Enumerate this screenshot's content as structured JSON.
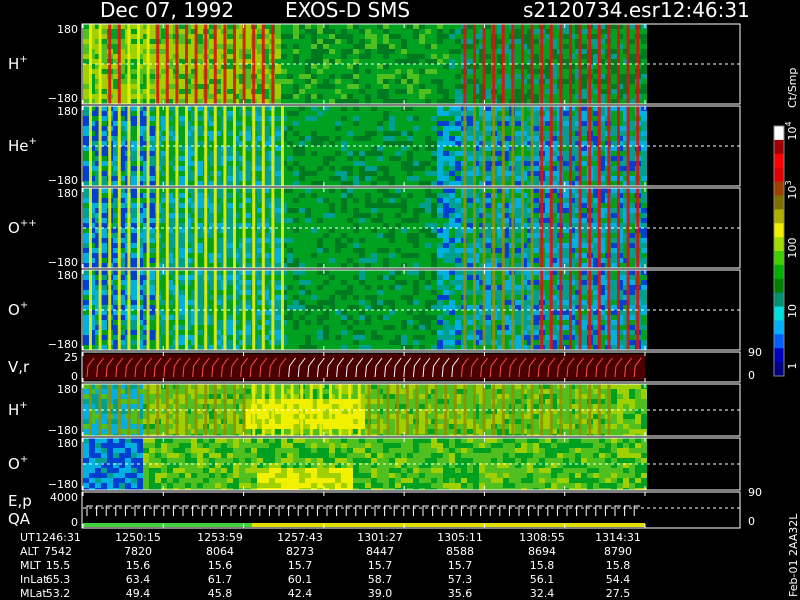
{
  "header": {
    "date": "Dec 07, 1992",
    "instrument": "EXOS-D SMS",
    "file": "s2120734.esr",
    "time": "12:46:31"
  },
  "colorbar": {
    "title": "Ct/Smp",
    "ticks": [
      {
        "label": "1",
        "value": 1
      },
      {
        "label": "10",
        "value": 10
      },
      {
        "label": "100",
        "value": 100
      },
      {
        "label": "10",
        "sup": "3",
        "value": 1000
      },
      {
        "label": "10",
        "sup": "4",
        "value": 10000
      }
    ],
    "colors": [
      "#000080",
      "#0000c0",
      "#0060ff",
      "#00b0ff",
      "#00e0e0",
      "#009070",
      "#008000",
      "#00b000",
      "#40d000",
      "#a0e000",
      "#f0f000",
      "#b0b000",
      "#807000",
      "#a04000",
      "#e00000",
      "#ff0000",
      "#a00000",
      "#ffffff"
    ]
  },
  "panels": [
    {
      "id": "p1",
      "label": "H",
      "sup": "+",
      "ymax": "180",
      "ymin": "−180"
    },
    {
      "id": "p2",
      "label": "He",
      "sup": "+",
      "ymax": "180",
      "ymin": "−180"
    },
    {
      "id": "p3",
      "label": "O",
      "sup": "++",
      "ymax": "180",
      "ymin": "−180"
    },
    {
      "id": "p4",
      "label": "O",
      "sup": "+",
      "ymax": "180",
      "ymin": "−180"
    },
    {
      "id": "p5",
      "label": "V,r",
      "ymax": "25",
      "ymin": "0",
      "rmax": "90",
      "rmin": "0"
    },
    {
      "id": "p6",
      "label": "H",
      "sup": "+",
      "ymax": "180",
      "ymin": "−180"
    },
    {
      "id": "p7",
      "label": "O",
      "sup": "+",
      "ymax": "180",
      "ymin": "−180"
    },
    {
      "id": "p8",
      "label": "E,p",
      "label2": "QA",
      "ymax": "4000",
      "ymin": "0",
      "rmax": "90",
      "rmin": "0"
    }
  ],
  "ephemeris": {
    "row_labels": [
      "UT",
      "ALT",
      "MLT",
      "InLat",
      "MLat"
    ],
    "columns": [
      [
        "1246:31",
        "7542",
        "15.5",
        "65.3",
        "53.2"
      ],
      [
        "1250:15",
        "7820",
        "15.6",
        "63.4",
        "49.4"
      ],
      [
        "1253:59",
        "8064",
        "15.6",
        "61.7",
        "45.8"
      ],
      [
        "1257:43",
        "8273",
        "15.7",
        "60.1",
        "42.4"
      ],
      [
        "1301:27",
        "8447",
        "15.7",
        "58.7",
        "39.0"
      ],
      [
        "1305:11",
        "8588",
        "15.7",
        "57.3",
        "35.6"
      ],
      [
        "1308:55",
        "8694",
        "15.8",
        "56.1",
        "32.4"
      ],
      [
        "1314:31",
        "8790",
        "15.8",
        "54.4",
        "27.5"
      ]
    ]
  },
  "footer_id": "Feb-01  2AA32L",
  "chart_data": {
    "type": "heatmap",
    "title": "Dec 07, 1992   EXOS-D SMS   s2120734.esr   12:46:31",
    "x_ticks": [
      "1246:31",
      "1250:15",
      "1253:59",
      "1257:43",
      "1301:27",
      "1305:11",
      "1308:55",
      "1314:31"
    ],
    "colorbar_scale": "log",
    "colorbar_range": [
      1,
      10000
    ],
    "colorbar_title": "Ct/Smp",
    "series": [
      {
        "name": "H+",
        "ylim": [
          -180,
          180
        ]
      },
      {
        "name": "He+",
        "ylim": [
          -180,
          180
        ]
      },
      {
        "name": "O++",
        "ylim": [
          -180,
          180
        ]
      },
      {
        "name": "O+",
        "ylim": [
          -180,
          180
        ]
      },
      {
        "name": "V,r",
        "ylim": [
          0,
          25
        ],
        "ylim_right": [
          0,
          90
        ]
      },
      {
        "name": "H+",
        "ylim": [
          -180,
          180
        ]
      },
      {
        "name": "O+",
        "ylim": [
          -180,
          180
        ]
      },
      {
        "name": "E,p / QA",
        "ylim": [
          0,
          4000
        ],
        "ylim_right": [
          0,
          90
        ]
      }
    ]
  }
}
